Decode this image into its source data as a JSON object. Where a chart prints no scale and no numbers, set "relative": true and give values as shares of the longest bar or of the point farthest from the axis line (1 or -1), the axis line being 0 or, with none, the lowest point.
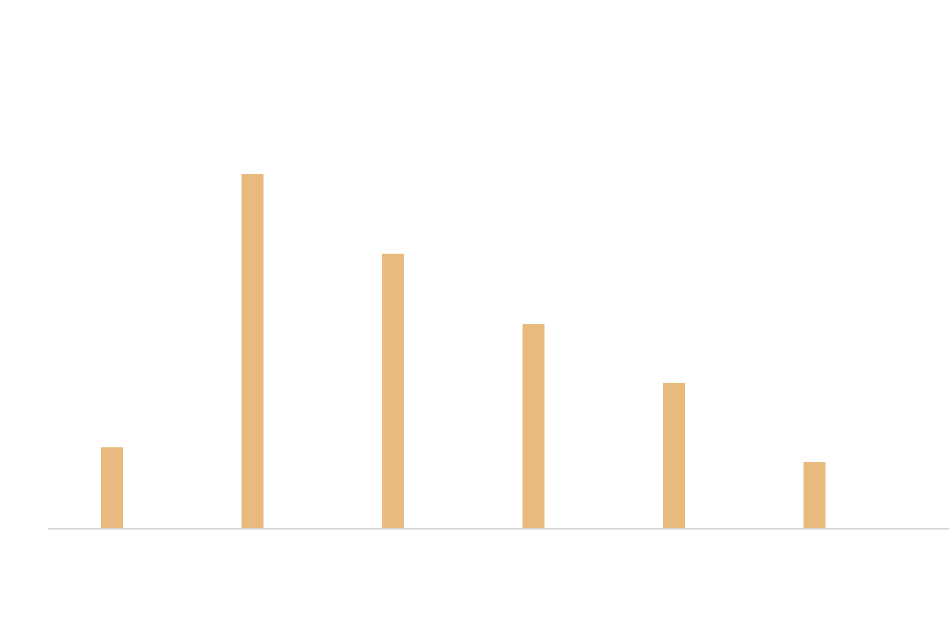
{
  "chart_data": {
    "type": "bar",
    "relative": true,
    "categories": [
      null,
      null,
      null,
      null,
      null,
      null
    ],
    "values": [
      0.228,
      1,
      0.776,
      0.577,
      0.411,
      0.188
    ],
    "color": "#e9ba7e"
  }
}
